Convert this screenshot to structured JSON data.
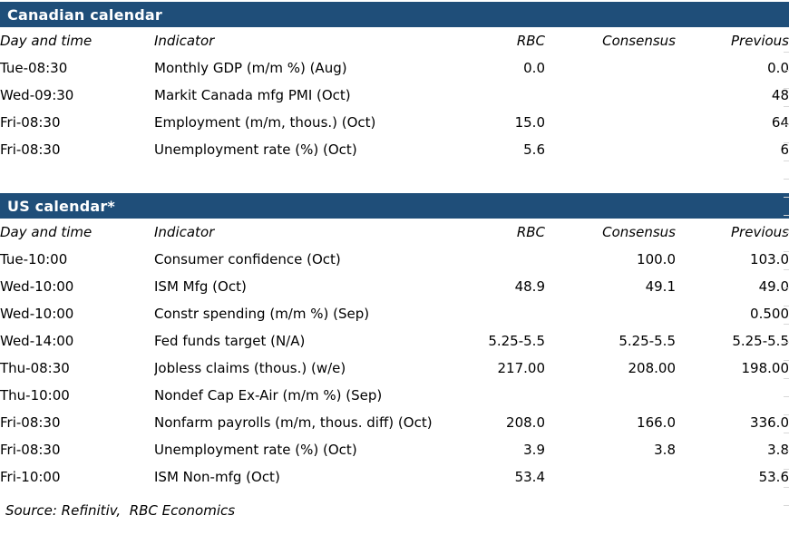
{
  "page": {
    "source_note": "Source: Refinitiv,  RBC Economics",
    "colors": {
      "header_bar": "#1F4E79",
      "header_bar_text": "#FFFFFF",
      "body_text": "#000000",
      "gridline_tick": "#D8D8D8"
    }
  },
  "columns": {
    "day": "Day and time",
    "indicator": "Indicator",
    "rbc": "RBC",
    "consensus": "Consensus",
    "previous": "Previous"
  },
  "sections": [
    {
      "id": "canadian",
      "title": "Canadian calendar",
      "rows": [
        {
          "day": "Tue-08:30",
          "indicator": "Monthly GDP (m/m %) (Aug)",
          "rbc": "0.0",
          "consensus": "",
          "previous": "0.0"
        },
        {
          "day": "Wed-09:30",
          "indicator": "Markit Canada mfg PMI (Oct)",
          "rbc": "",
          "consensus": "",
          "previous": "48"
        },
        {
          "day": "Fri-08:30",
          "indicator": "Employment (m/m, thous.) (Oct)",
          "rbc": "15.0",
          "consensus": "",
          "previous": "64"
        },
        {
          "day": "Fri-08:30",
          "indicator": "Unemployment rate (%) (Oct)",
          "rbc": "5.6",
          "consensus": "",
          "previous": "6"
        }
      ]
    },
    {
      "id": "us",
      "title": "US calendar*",
      "rows": [
        {
          "day": "Tue-10:00",
          "indicator": "Consumer confidence (Oct)",
          "rbc": "",
          "consensus": "100.0",
          "previous": "103.0"
        },
        {
          "day": "Wed-10:00",
          "indicator": "ISM Mfg (Oct)",
          "rbc": "48.9",
          "consensus": "49.1",
          "previous": "49.0"
        },
        {
          "day": "Wed-10:00",
          "indicator": "Constr spending (m/m %) (Sep)",
          "rbc": "",
          "consensus": "",
          "previous": "0.500"
        },
        {
          "day": "Wed-14:00",
          "indicator": "Fed funds target (N/A)",
          "rbc": "5.25-5.5",
          "consensus": "5.25-5.5",
          "previous": "5.25-5.5"
        },
        {
          "day": "Thu-08:30",
          "indicator": "Jobless claims (thous.) (w/e)",
          "rbc": "217.00",
          "consensus": "208.00",
          "previous": "198.00"
        },
        {
          "day": "Thu-10:00",
          "indicator": "Nondef Cap Ex-Air (m/m %) (Sep)",
          "rbc": "",
          "consensus": "",
          "previous": ""
        },
        {
          "day": "Fri-08:30",
          "indicator": "Nonfarm payrolls (m/m, thous. diff) (Oct)",
          "rbc": "208.0",
          "consensus": "166.0",
          "previous": "336.0"
        },
        {
          "day": "Fri-08:30",
          "indicator": "Unemployment rate (%) (Oct)",
          "rbc": "3.9",
          "consensus": "3.8",
          "previous": "3.8"
        },
        {
          "day": "Fri-10:00",
          "indicator": "ISM Non-mfg (Oct)",
          "rbc": "53.4",
          "consensus": "",
          "previous": "53.6"
        }
      ]
    }
  ]
}
